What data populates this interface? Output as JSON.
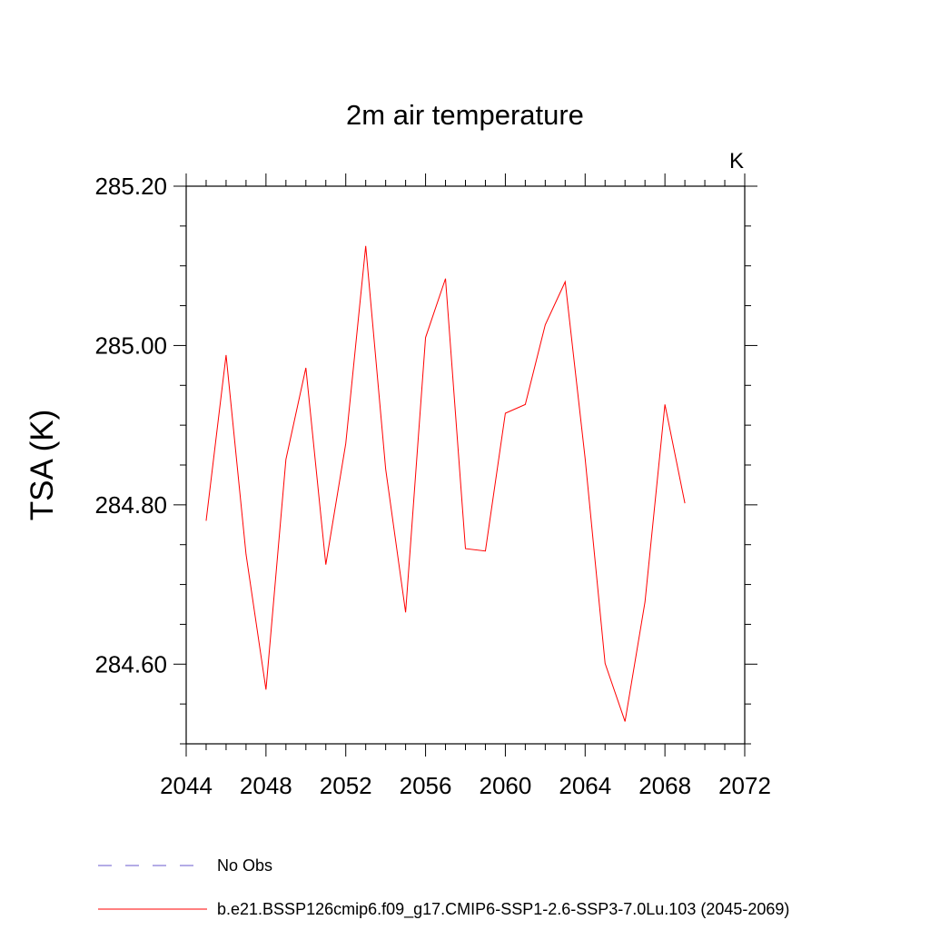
{
  "chart_data": {
    "type": "line",
    "title": "2m air temperature",
    "units_label": "K",
    "ylabel": "TSA  (K)",
    "xlabel": "",
    "xlim": [
      2044,
      2072
    ],
    "ylim": [
      284.5,
      285.2
    ],
    "x_ticks": [
      2044,
      2048,
      2052,
      2056,
      2060,
      2064,
      2068,
      2072
    ],
    "x_tick_labels": [
      "2044",
      "2048",
      "2052",
      "2056",
      "2060",
      "2064",
      "2068",
      "2072"
    ],
    "y_ticks": [
      284.6,
      284.8,
      285.0,
      285.2
    ],
    "y_tick_labels": [
      "284.60",
      "284.80",
      "285.00",
      "285.20"
    ],
    "y_minor_step": 0.05,
    "x_minor_step": 1,
    "series": [
      {
        "name": "b.e21.BSSP126cmip6.f09_g17.CMIP6-SSP1-2.6-SSP3-7.0Lu.103 (2045-2069)",
        "color": "#ff0000",
        "style": "solid",
        "x": [
          2045,
          2046,
          2047,
          2048,
          2049,
          2050,
          2051,
          2052,
          2053,
          2054,
          2055,
          2056,
          2057,
          2058,
          2059,
          2060,
          2061,
          2062,
          2063,
          2064,
          2065,
          2066,
          2067,
          2068,
          2069
        ],
        "values": [
          284.78,
          284.988,
          284.738,
          284.568,
          284.857,
          284.972,
          284.725,
          284.877,
          285.125,
          284.845,
          284.665,
          285.01,
          285.084,
          284.745,
          284.742,
          284.915,
          284.926,
          285.026,
          285.08,
          284.858,
          284.601,
          284.528,
          284.678,
          284.926,
          284.802
        ]
      }
    ],
    "legend": [
      {
        "label": "No Obs",
        "color": "#6a5acd",
        "style": "dashed"
      },
      {
        "label": "b.e21.BSSP126cmip6.f09_g17.CMIP6-SSP1-2.6-SSP3-7.0Lu.103 (2045-2069)",
        "color": "#ff0000",
        "style": "solid"
      }
    ]
  }
}
